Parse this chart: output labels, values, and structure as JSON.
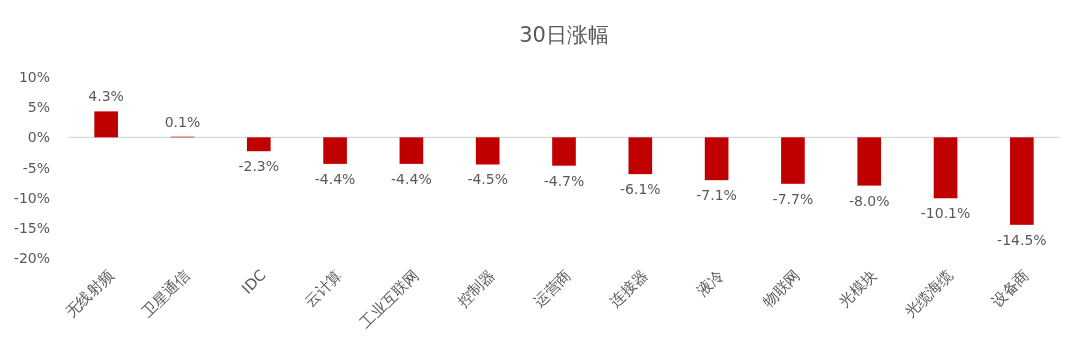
{
  "chart_data": {
    "type": "bar",
    "title": "30日涨幅",
    "categories": [
      "无线射频",
      "卫星通信",
      "IDC",
      "云计算",
      "工业互联网",
      "控制器",
      "运营商",
      "连接器",
      "液冷",
      "物联网",
      "光模块",
      "光缆海缆",
      "设备商"
    ],
    "values": [
      4.3,
      0.1,
      -2.3,
      -4.4,
      -4.4,
      -4.5,
      -4.7,
      -6.1,
      -7.1,
      -7.7,
      -8.0,
      -10.1,
      -14.5
    ],
    "value_labels": [
      "4.3%",
      "0.1%",
      "-2.3%",
      "-4.4%",
      "-4.4%",
      "-4.5%",
      "-4.7%",
      "-6.1%",
      "-7.1%",
      "-7.7%",
      "-8.0%",
      "-10.1%",
      "-14.5%"
    ],
    "color": "#c00000",
    "ylim": [
      -20,
      10
    ],
    "yticks": [
      {
        "value": 10,
        "label": "10%"
      },
      {
        "value": 5,
        "label": "5%"
      },
      {
        "value": 0,
        "label": "0%"
      },
      {
        "value": -5,
        "label": "-5%"
      },
      {
        "value": -10,
        "label": "-10%"
      },
      {
        "value": -15,
        "label": "-15%"
      },
      {
        "value": -20,
        "label": "-20%"
      }
    ]
  }
}
